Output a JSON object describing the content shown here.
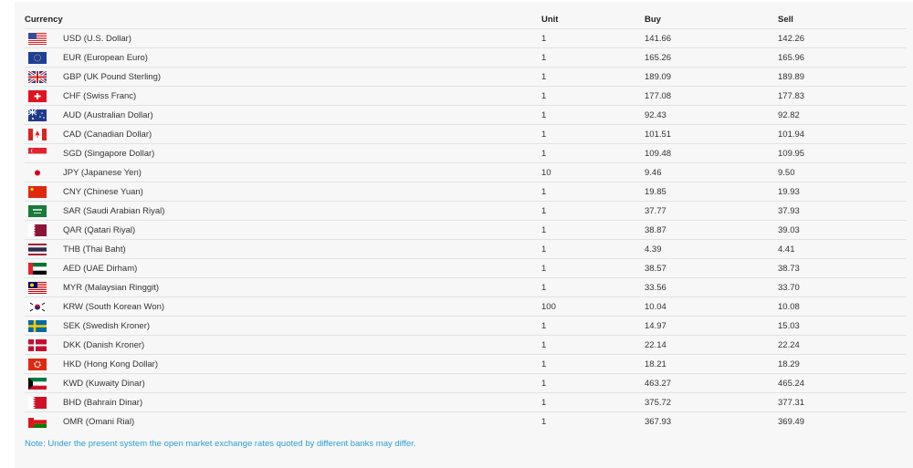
{
  "table": {
    "headers": {
      "currency": "Currency",
      "unit": "Unit",
      "buy": "Buy",
      "sell": "Sell"
    },
    "rows": [
      {
        "flag": "us",
        "currency": "USD (U.S. Dollar)",
        "unit": "1",
        "buy": "141.66",
        "sell": "142.26"
      },
      {
        "flag": "eu",
        "currency": "EUR (European Euro)",
        "unit": "1",
        "buy": "165.26",
        "sell": "165.96"
      },
      {
        "flag": "gb",
        "currency": "GBP (UK Pound Sterling)",
        "unit": "1",
        "buy": "189.09",
        "sell": "189.89"
      },
      {
        "flag": "ch",
        "currency": "CHF (Swiss Franc)",
        "unit": "1",
        "buy": "177.08",
        "sell": "177.83"
      },
      {
        "flag": "au",
        "currency": "AUD (Australian Dollar)",
        "unit": "1",
        "buy": "92.43",
        "sell": "92.82"
      },
      {
        "flag": "ca",
        "currency": "CAD (Canadian Dollar)",
        "unit": "1",
        "buy": "101.51",
        "sell": "101.94"
      },
      {
        "flag": "sg",
        "currency": "SGD (Singapore Dollar)",
        "unit": "1",
        "buy": "109.48",
        "sell": "109.95"
      },
      {
        "flag": "jp",
        "currency": "JPY (Japanese Yen)",
        "unit": "10",
        "buy": "9.46",
        "sell": "9.50"
      },
      {
        "flag": "cn",
        "currency": "CNY (Chinese Yuan)",
        "unit": "1",
        "buy": "19.85",
        "sell": "19.93"
      },
      {
        "flag": "sa",
        "currency": "SAR (Saudi Arabian Riyal)",
        "unit": "1",
        "buy": "37.77",
        "sell": "37.93"
      },
      {
        "flag": "qa",
        "currency": "QAR (Qatari Riyal)",
        "unit": "1",
        "buy": "38.87",
        "sell": "39.03"
      },
      {
        "flag": "th",
        "currency": "THB (Thai Baht)",
        "unit": "1",
        "buy": "4.39",
        "sell": "4.41"
      },
      {
        "flag": "ae",
        "currency": "AED (UAE Dirham)",
        "unit": "1",
        "buy": "38.57",
        "sell": "38.73"
      },
      {
        "flag": "my",
        "currency": "MYR (Malaysian Ringgit)",
        "unit": "1",
        "buy": "33.56",
        "sell": "33.70"
      },
      {
        "flag": "kr",
        "currency": "KRW (South Korean Won)",
        "unit": "100",
        "buy": "10.04",
        "sell": "10.08"
      },
      {
        "flag": "se",
        "currency": "SEK (Swedish Kroner)",
        "unit": "1",
        "buy": "14.97",
        "sell": "15.03"
      },
      {
        "flag": "dk",
        "currency": "DKK (Danish Kroner)",
        "unit": "1",
        "buy": "22.14",
        "sell": "22.24"
      },
      {
        "flag": "hk",
        "currency": "HKD (Hong Kong Dollar)",
        "unit": "1",
        "buy": "18.21",
        "sell": "18.29"
      },
      {
        "flag": "kw",
        "currency": "KWD (Kuwaity Dinar)",
        "unit": "1",
        "buy": "463.27",
        "sell": "465.24"
      },
      {
        "flag": "bh",
        "currency": "BHD (Bahrain Dinar)",
        "unit": "1",
        "buy": "375.72",
        "sell": "377.31"
      },
      {
        "flag": "om",
        "currency": "OMR (Omani Rial)",
        "unit": "1",
        "buy": "367.93",
        "sell": "369.49"
      }
    ]
  },
  "note": "Note: Under the present system the open market exchange rates quoted by different banks may differ.",
  "colors": {
    "note": "#2a9fd6",
    "panel": "#f7f7f7",
    "divider": "#dfe3e8"
  }
}
